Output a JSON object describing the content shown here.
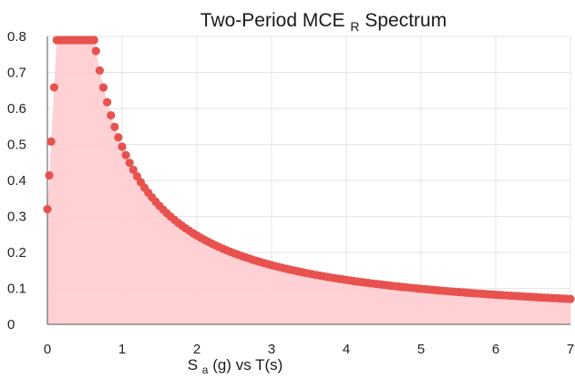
{
  "chart_data": {
    "type": "scatter",
    "title": {
      "main": "Two-Period MCE",
      "subscript": "R",
      "suffix": " Spectrum"
    },
    "xlabel": {
      "s": "S",
      "a": "a",
      "rest": "(g) vs T(s)"
    },
    "ylabel": "",
    "xlim": [
      0,
      7
    ],
    "ylim": [
      0,
      0.8
    ],
    "x_ticks": [
      "0",
      "1",
      "2",
      "3",
      "4",
      "5",
      "6",
      "7"
    ],
    "y_ticks": [
      "0",
      "0.1",
      "0.2",
      "0.3",
      "0.4",
      "0.5",
      "0.6",
      "0.7",
      "0.8"
    ],
    "grid": true,
    "fill_under": true,
    "colors": {
      "points": "#e8524e",
      "fill": "#ffc9cc"
    },
    "spectrum": {
      "t0": 0.125,
      "ts": 0.625,
      "sds": 0.79,
      "start": 0.32,
      "x_max": 7,
      "step": 0.05
    },
    "series": [
      {
        "name": "",
        "x": [],
        "y": []
      }
    ]
  }
}
